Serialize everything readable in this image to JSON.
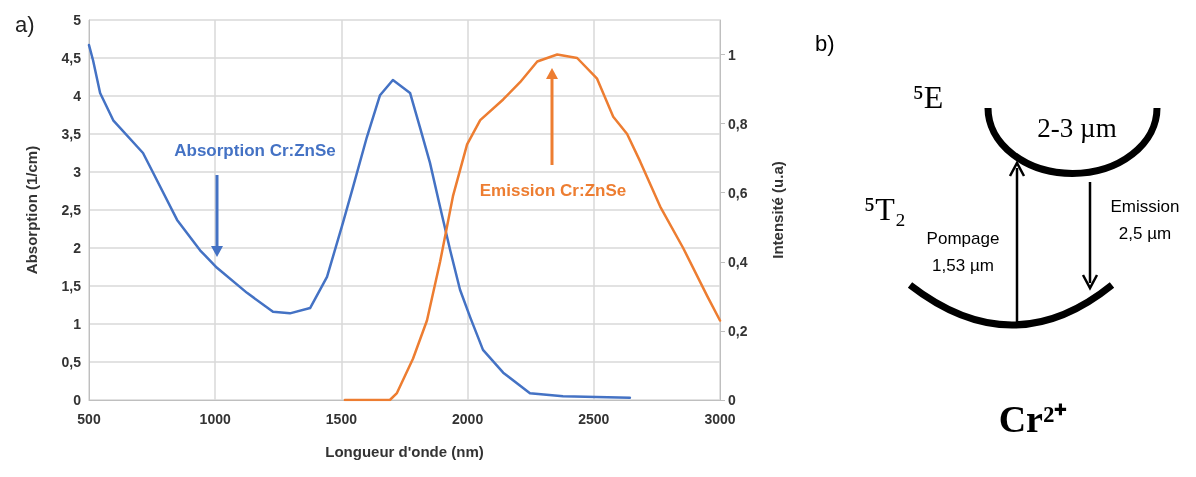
{
  "chart_data": [
    {
      "type": "line",
      "title": "a)",
      "xlabel": "Longueur d'onde (nm)",
      "ylabel": "Absorption (1/cm)",
      "y2label": "Intensité (u.a)",
      "xlim": [
        500,
        3000
      ],
      "xticks": [
        500,
        1000,
        1500,
        2000,
        2500,
        3000
      ],
      "ylim": [
        0,
        5
      ],
      "yticks": [
        0,
        {
          "value": 0.5,
          "label": "0,5"
        },
        1,
        {
          "value": 1.5,
          "label": "1,5"
        },
        2,
        {
          "value": 2.5,
          "label": "2,5"
        },
        3,
        {
          "value": 3.5,
          "label": "3,5"
        },
        4,
        {
          "value": 4.5,
          "label": "4,5"
        },
        5
      ],
      "y2lim": [
        0,
        1.1
      ],
      "y2ticks": [
        0,
        {
          "value": 0.2,
          "label": "0,2"
        },
        {
          "value": 0.4,
          "label": "0,4"
        },
        {
          "value": 0.6,
          "label": "0,6"
        },
        {
          "value": 0.8,
          "label": "0,8"
        },
        1
      ],
      "grid": true,
      "marker": "none",
      "line_style": "solid",
      "series": [
        {
          "color": "#4472c4",
          "x": [
            500,
            516,
            544,
            596,
            714,
            754,
            849,
            940,
            1007,
            1126,
            1229,
            1296,
            1376,
            1443,
            1506,
            1546,
            1601,
            1653,
            1704,
            1772,
            1811,
            1851,
            1891,
            1931,
            1970,
            2010,
            2061,
            2141,
            2247,
            2378,
            2643
          ],
          "values": [
            4.67,
            4.47,
            4.04,
            3.68,
            3.25,
            2.99,
            2.37,
            1.97,
            1.74,
            1.41,
            1.16,
            1.14,
            1.21,
            1.62,
            2.33,
            2.8,
            3.46,
            4.01,
            4.21,
            4.04,
            3.59,
            3.12,
            2.54,
            1.97,
            1.45,
            1.09,
            0.66,
            0.36,
            0.09,
            0.05,
            0.03
          ]
        },
        {
          "color": "#ed7d31",
          "axis": "y2",
          "x": [
            1514,
            1692,
            1720,
            1784,
            1839,
            1891,
            1942,
            1998,
            2050,
            2141,
            2208,
            2276,
            2355,
            2434,
            2513,
            2577,
            2632,
            2684,
            2763,
            2854,
            2950,
            3000
          ],
          "values": [
            0,
            0,
            0.02,
            0.12,
            0.23,
            0.4,
            0.59,
            0.74,
            0.81,
            0.87,
            0.92,
            0.98,
            1.0,
            0.99,
            0.93,
            0.82,
            0.77,
            0.69,
            0.56,
            0.44,
            0.3,
            0.23
          ]
        }
      ],
      "annotations": [
        "Absorption Cr:ZnSe",
        "Emission Cr:ZnSe"
      ]
    },
    {
      "type": "other",
      "title": "b)",
      "annotations": [
        "⁵E",
        "2-3 µm",
        "⁵T₂",
        "Pompage\n1,53 µm",
        "Emission\n2,5 µm",
        "Cr²⁺"
      ]
    }
  ]
}
